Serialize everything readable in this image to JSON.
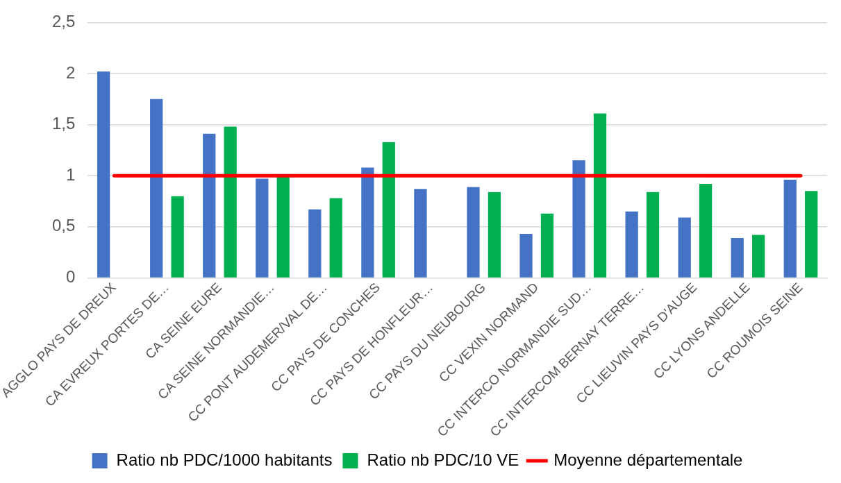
{
  "chart_data": {
    "type": "bar",
    "categories": [
      "AGGLO PAYS DE DREUX",
      "CA EVREUX PORTES DE…",
      "CA SEINE EURE",
      "CA SEINE NORMANDIE…",
      "CC PONT AUDEMER/VAL DE…",
      "CC PAYS DE CONCHES",
      "CC PAYS DE HONFLEUR…",
      "CC PAYS DU NEUBOURG",
      "CC VEXIN NORMAND",
      "CC INTERCO NORMANDIE SUD…",
      "CC INTERCOM BERNAY TERRE…",
      "CC LIEUVIN PAYS D'AUGE",
      "CC LYONS ANDELLE",
      "CC ROUMOIS SEINE"
    ],
    "series": [
      {
        "name": "Ratio nb PDC/1000 habitants",
        "color": "#4472c4",
        "values": [
          2.02,
          1.75,
          1.41,
          0.97,
          0.67,
          1.08,
          0.87,
          0.89,
          0.43,
          1.15,
          0.65,
          0.59,
          0.39,
          0.96
        ]
      },
      {
        "name": "Ratio nb PDC/10 VE",
        "color": "#00b050",
        "values": [
          null,
          0.8,
          1.48,
          1.0,
          0.78,
          1.33,
          null,
          0.84,
          0.63,
          1.61,
          0.84,
          0.92,
          0.42,
          0.85
        ]
      },
      {
        "name": "Moyenne départementale",
        "type": "line",
        "color": "#ff0000",
        "values": [
          1,
          1,
          1,
          1,
          1,
          1,
          1,
          1,
          1,
          1,
          1,
          1,
          1,
          1
        ]
      }
    ],
    "ylim": [
      0,
      2.5
    ],
    "yticks": [
      {
        "value": 0,
        "label": "0"
      },
      {
        "value": 0.5,
        "label": "0,5"
      },
      {
        "value": 1,
        "label": "1"
      },
      {
        "value": 1.5,
        "label": "1,5"
      },
      {
        "value": 2,
        "label": "2"
      },
      {
        "value": 2.5,
        "label": "2,5"
      }
    ],
    "grid": "y",
    "legend": "bottom",
    "marker": "none"
  }
}
